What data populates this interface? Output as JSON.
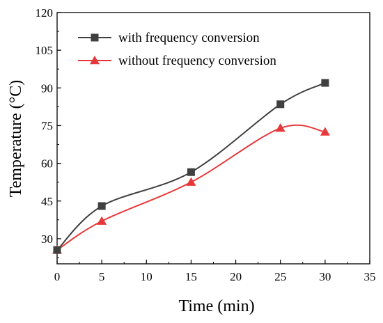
{
  "chart_data": {
    "type": "line",
    "xlabel": "Time (min)",
    "ylabel": "Temperature (°C)",
    "xlim": [
      0,
      35
    ],
    "ylim": [
      20,
      120
    ],
    "x_ticks": [
      0,
      5,
      10,
      15,
      20,
      25,
      30,
      35
    ],
    "y_ticks": [
      30,
      45,
      60,
      75,
      90,
      105,
      120
    ],
    "grid": false,
    "legend_position": "top-left",
    "series": [
      {
        "name": "with frequency conversion",
        "color": "#404040",
        "marker": "square",
        "x": [
          0,
          5,
          15,
          25,
          30
        ],
        "values": [
          25.5,
          43,
          56.5,
          83.5,
          92
        ]
      },
      {
        "name": "without frequency conversion",
        "color": "#e8393a",
        "marker": "triangle",
        "x": [
          0,
          5,
          15,
          25,
          30
        ],
        "values": [
          25.5,
          37,
          52.5,
          74,
          72.5
        ]
      }
    ]
  }
}
